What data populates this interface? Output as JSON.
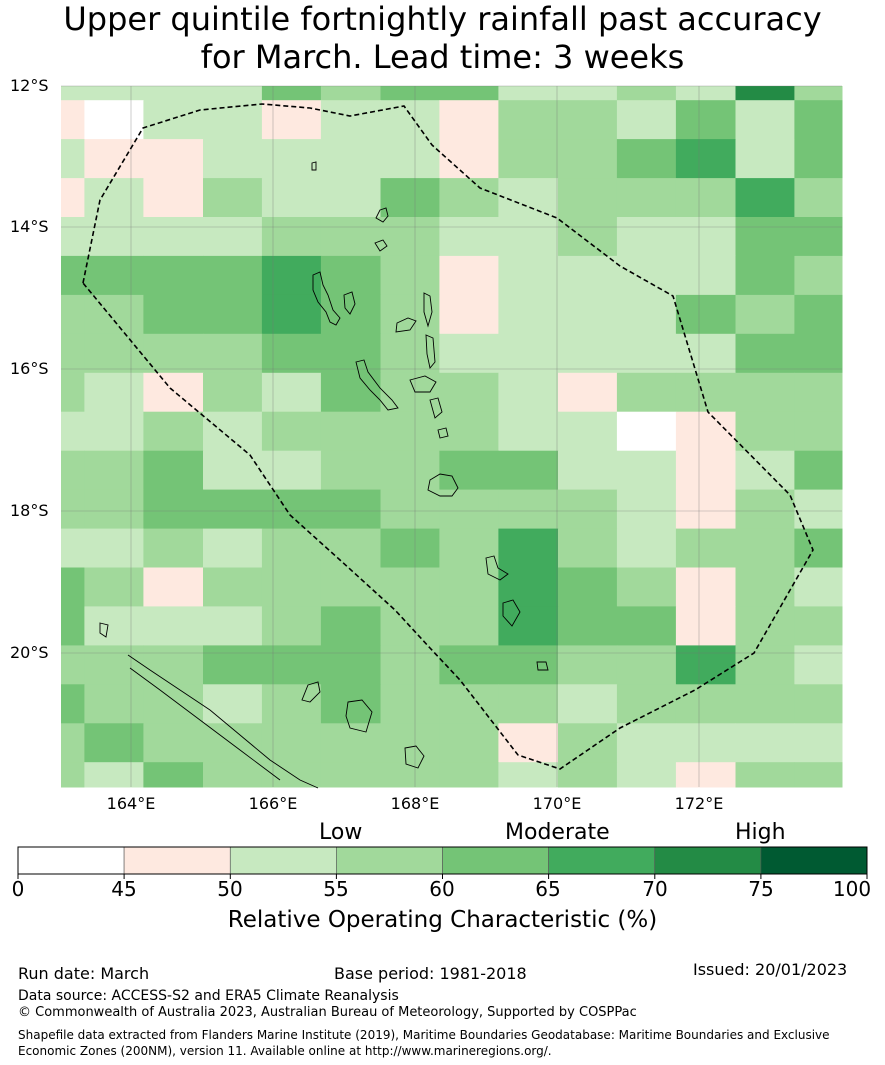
{
  "title_line1": "Upper quintile fortnightly rainfall past accuracy",
  "title_line2": "for March. Lead time: 3 weeks",
  "map": {
    "lat_labels": [
      "12°S",
      "14°S",
      "16°S",
      "18°S",
      "20°S"
    ],
    "lon_labels": [
      "164°E",
      "166°E",
      "168°E",
      "170°E",
      "172°E"
    ],
    "lon_range": [
      163.0,
      174.0
    ],
    "lat_range": [
      -21.9,
      -12.0
    ],
    "grid": "on",
    "colormap": [
      "#ffffff",
      "#fee9e0",
      "#c7e9c0",
      "#a1d99b",
      "#74c476",
      "#41ab5d",
      "#238b45",
      "#005a32"
    ],
    "cell_classes": [
      [
        2,
        2,
        2,
        2,
        4,
        3,
        4,
        4,
        2,
        2,
        3,
        2,
        6,
        3
      ],
      [
        1,
        0,
        2,
        2,
        1,
        2,
        2,
        1,
        3,
        3,
        2,
        4,
        2,
        4
      ],
      [
        2,
        1,
        1,
        2,
        2,
        2,
        2,
        1,
        3,
        3,
        4,
        5,
        2,
        4
      ],
      [
        1,
        2,
        1,
        3,
        2,
        2,
        4,
        3,
        2,
        3,
        3,
        3,
        5,
        3
      ],
      [
        2,
        2,
        2,
        2,
        3,
        3,
        3,
        2,
        2,
        3,
        2,
        2,
        4,
        4
      ],
      [
        4,
        4,
        4,
        4,
        5,
        4,
        3,
        1,
        2,
        2,
        2,
        2,
        4,
        3
      ],
      [
        3,
        3,
        4,
        4,
        5,
        4,
        3,
        1,
        2,
        2,
        2,
        4,
        3,
        4
      ],
      [
        3,
        3,
        3,
        3,
        4,
        4,
        3,
        2,
        2,
        2,
        2,
        2,
        4,
        4
      ],
      [
        3,
        2,
        1,
        3,
        2,
        4,
        3,
        3,
        2,
        1,
        3,
        3,
        3,
        3
      ],
      [
        2,
        2,
        3,
        2,
        3,
        3,
        3,
        3,
        2,
        2,
        0,
        1,
        3,
        3
      ],
      [
        3,
        3,
        4,
        2,
        2,
        3,
        3,
        4,
        4,
        2,
        2,
        1,
        2,
        4
      ],
      [
        3,
        3,
        4,
        4,
        4,
        4,
        3,
        3,
        3,
        3,
        2,
        1,
        3,
        2
      ],
      [
        2,
        2,
        3,
        2,
        3,
        3,
        4,
        3,
        5,
        3,
        2,
        3,
        3,
        4
      ],
      [
        4,
        3,
        1,
        3,
        3,
        3,
        3,
        3,
        5,
        4,
        3,
        1,
        3,
        2
      ],
      [
        4,
        2,
        2,
        2,
        3,
        4,
        3,
        3,
        5,
        4,
        4,
        1,
        3,
        3
      ],
      [
        3,
        3,
        3,
        4,
        4,
        4,
        3,
        4,
        4,
        3,
        3,
        5,
        3,
        2
      ],
      [
        4,
        3,
        3,
        2,
        3,
        4,
        3,
        3,
        3,
        2,
        3,
        3,
        3,
        3
      ],
      [
        3,
        4,
        3,
        3,
        3,
        3,
        3,
        3,
        1,
        3,
        2,
        2,
        2,
        2
      ],
      [
        3,
        2,
        4,
        3,
        3,
        3,
        3,
        3,
        2,
        3,
        2,
        1,
        3,
        3
      ]
    ],
    "row_lat_edges": [
      -12.0,
      -12.2,
      -12.75,
      -13.3,
      -13.85,
      -14.4,
      -14.95,
      -15.5,
      -16.05,
      -16.6,
      -17.15,
      -17.7,
      -18.25,
      -18.8,
      -19.35,
      -19.9,
      -20.45,
      -21.0,
      -21.55,
      -21.9
    ],
    "col_lon_edges": [
      163.0,
      163.33,
      164.16,
      165.0,
      165.83,
      166.66,
      167.5,
      168.33,
      169.16,
      170.0,
      170.83,
      171.66,
      172.5,
      173.33,
      174.0
    ]
  },
  "colorbar": {
    "category_labels": [
      "Low",
      "Moderate",
      "High"
    ],
    "ticks": [
      "0",
      "45",
      "50",
      "55",
      "60",
      "65",
      "70",
      "75",
      "100"
    ],
    "colors": [
      "#ffffff",
      "#fee9e0",
      "#c7e9c0",
      "#a1d99b",
      "#74c476",
      "#41ab5d",
      "#238b45",
      "#005a32"
    ],
    "label": "Relative Operating Characteristic (%)"
  },
  "footer": {
    "run_date": "Run date: March",
    "base_period": "Base period: 1981-2018",
    "issued": "Issued: 20/01/2023",
    "data_source": "Data source: ACCESS-S2 and ERA5 Climate Reanalysis",
    "copyright": "© Commonwealth of Australia 2023, Australian Bureau of Meteorology, Supported by COSPPac",
    "shapefile": "Shapefile data extracted from Flanders Marine Institute (2019), Maritime Boundaries Geodatabase: Maritime Boundaries and Exclusive Economic Zones (200NM), version 11. Available online at http://www.marineregions.org/."
  }
}
